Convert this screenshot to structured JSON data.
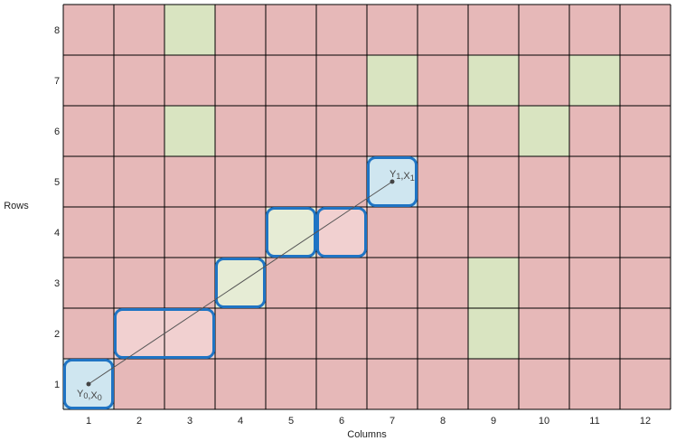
{
  "grid": {
    "columns": 12,
    "rows": 8,
    "column_labels": [
      "1",
      "2",
      "3",
      "4",
      "5",
      "6",
      "7",
      "8",
      "9",
      "10",
      "11",
      "12"
    ],
    "row_labels": [
      "1",
      "2",
      "3",
      "4",
      "5",
      "6",
      "7",
      "8"
    ],
    "x_axis_title": "Columns",
    "y_axis_title": "Rows"
  },
  "colors": {
    "blocked_cell": "#e6b8b8",
    "free_cell": "#d9e4c1",
    "path_cell": "#f1d0d0",
    "path_free_cell": "#e6ecd5",
    "end_cell": "#cfe6f0",
    "grid_line": "#000000",
    "outline": "#1f74c4",
    "line": "#555555"
  },
  "free_cells": [
    {
      "col": 3,
      "row": 8
    },
    {
      "col": 7,
      "row": 7
    },
    {
      "col": 9,
      "row": 7
    },
    {
      "col": 11,
      "row": 7
    },
    {
      "col": 3,
      "row": 6
    },
    {
      "col": 10,
      "row": 6
    },
    {
      "col": 9,
      "row": 3
    },
    {
      "col": 9,
      "row": 2
    }
  ],
  "path_segments": [
    {
      "type": "start",
      "row": 1,
      "col_from": 1,
      "col_to": 1
    },
    {
      "type": "path",
      "row": 2,
      "col_from": 2,
      "col_to": 3
    },
    {
      "type": "path_free",
      "row": 3,
      "col_from": 4,
      "col_to": 4
    },
    {
      "type": "path_free",
      "row": 4,
      "col_from": 5,
      "col_to": 5
    },
    {
      "type": "path",
      "row": 4,
      "col_from": 6,
      "col_to": 6
    },
    {
      "type": "end",
      "row": 5,
      "col_from": 7,
      "col_to": 7
    }
  ],
  "start_point": {
    "col": 1,
    "row": 1,
    "label_base": "Y",
    "label_sub": "0",
    "label_base2": "X",
    "label_sub2": "0"
  },
  "end_point": {
    "col": 7,
    "row": 5,
    "label_base": "Y",
    "label_sub": "1",
    "label_base2": "X",
    "label_sub2": "1"
  }
}
